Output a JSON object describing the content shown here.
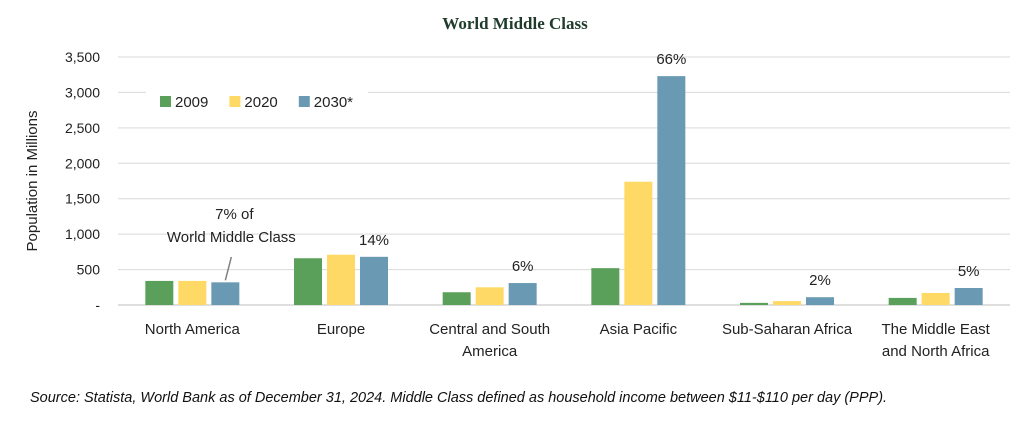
{
  "chart_data": {
    "type": "bar",
    "title": "World Middle Class",
    "ylabel": "Population in Millions",
    "xlabel": "",
    "ylim": [
      0,
      3500
    ],
    "yticks": [
      0,
      500,
      1000,
      1500,
      2000,
      2500,
      3000,
      3500
    ],
    "ytick_labels": [
      "-",
      "500",
      "1,000",
      "1,500",
      "2,000",
      "2,500",
      "3,000",
      "3,500"
    ],
    "grid": true,
    "legend_position": "top-left",
    "categories": [
      [
        "North America"
      ],
      [
        "Europe"
      ],
      [
        "Central and South",
        "America"
      ],
      [
        "Asia Pacific"
      ],
      [
        "Sub-Saharan Africa"
      ],
      [
        "The Middle East",
        "and North Africa"
      ]
    ],
    "series": [
      {
        "name": "2009",
        "color": "#5ba05a",
        "values": [
          340,
          660,
          180,
          520,
          30,
          100
        ]
      },
      {
        "name": "2020",
        "color": "#ffd966",
        "values": [
          340,
          710,
          250,
          1740,
          55,
          170
        ]
      },
      {
        "name": "2030*",
        "color": "#6a9ab3",
        "values": [
          320,
          680,
          310,
          3230,
          110,
          240
        ]
      }
    ],
    "annotations": [
      {
        "category_index": 0,
        "lines": [
          "7% of",
          "World Middle Class"
        ],
        "callout": true
      },
      {
        "category_index": 1,
        "lines": [
          "14%"
        ],
        "callout": false
      },
      {
        "category_index": 2,
        "lines": [
          "6%"
        ],
        "callout": false
      },
      {
        "category_index": 3,
        "lines": [
          "66%"
        ],
        "callout": false
      },
      {
        "category_index": 4,
        "lines": [
          "2%"
        ],
        "callout": false
      },
      {
        "category_index": 5,
        "lines": [
          "5%"
        ],
        "callout": false
      }
    ],
    "colors": {
      "grid": "#d9d9d9",
      "axis": "#bfbfbf"
    }
  },
  "footer": {
    "source": "Source: Statista, World Bank as of December 31, 2024.  Middle Class defined as household income between $11-$110 per day (PPP)."
  }
}
